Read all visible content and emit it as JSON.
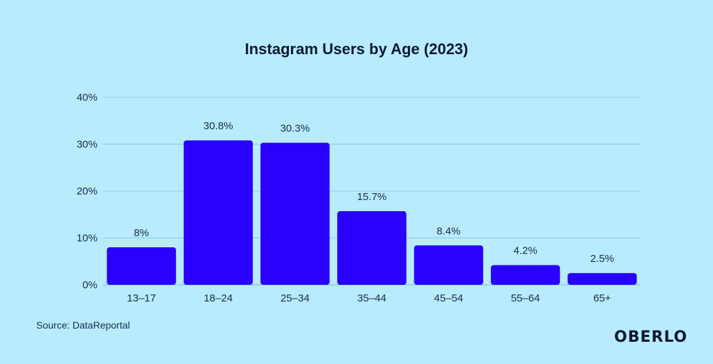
{
  "chart_data": {
    "type": "bar",
    "title": "Instagram Users by Age (2023)",
    "categories": [
      "13–17",
      "18–24",
      "25–34",
      "35–44",
      "45–54",
      "55–64",
      "65+"
    ],
    "values": [
      8,
      30.8,
      30.3,
      15.7,
      8.4,
      4.2,
      2.5
    ],
    "value_labels": [
      "8%",
      "30.8%",
      "30.3%",
      "15.7%",
      "8.4%",
      "4.2%",
      "2.5%"
    ],
    "yticks": [
      0,
      10,
      20,
      30,
      40
    ],
    "ytick_labels": [
      "0%",
      "10%",
      "20%",
      "30%",
      "40%"
    ],
    "ylim": [
      0,
      40
    ],
    "xlabel": "",
    "ylabel": "",
    "grid": true,
    "bar_color": "#2a00ff",
    "background": "#b8ecfd"
  },
  "source": "Source: DataReportal",
  "logo": "OBERLO"
}
